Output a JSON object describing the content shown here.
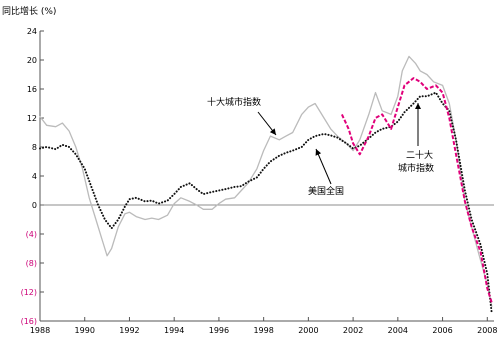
{
  "chart_data": {
    "type": "line",
    "ylabel": "同比增长 (%)",
    "ylim": [
      -16,
      24
    ],
    "xlim": [
      1988,
      2008.3
    ],
    "grid": false,
    "zero_line": true,
    "y_ticks": [
      {
        "value": 24,
        "label": "24"
      },
      {
        "value": 20,
        "label": "20"
      },
      {
        "value": 16,
        "label": "16"
      },
      {
        "value": 12,
        "label": "12"
      },
      {
        "value": 8,
        "label": "8"
      },
      {
        "value": 4,
        "label": "4"
      },
      {
        "value": 0,
        "label": "0"
      },
      {
        "value": -4,
        "label": "(4)"
      },
      {
        "value": -8,
        "label": "(8)"
      },
      {
        "value": -12,
        "label": "(12)"
      },
      {
        "value": -16,
        "label": "(16)"
      }
    ],
    "x_ticks": [
      {
        "value": 1988,
        "label": "1988"
      },
      {
        "value": 1990,
        "label": "1990"
      },
      {
        "value": 1992,
        "label": "1992"
      },
      {
        "value": 1994,
        "label": "1994"
      },
      {
        "value": 1996,
        "label": "1996"
      },
      {
        "value": 1998,
        "label": "1998"
      },
      {
        "value": 2000,
        "label": "2000"
      },
      {
        "value": 2002,
        "label": "2002"
      },
      {
        "value": 2004,
        "label": "2004"
      },
      {
        "value": 2006,
        "label": "2006"
      },
      {
        "value": 2008,
        "label": "2008"
      }
    ],
    "colors": {
      "positive_tick": "#000000",
      "negative_tick": "#cc0077",
      "ten_city": "#bbbbbb",
      "us_national": "#111111",
      "twenty_city": "#e0007a"
    },
    "series": [
      {
        "name": "十大城市指数",
        "style": "solid",
        "x": [
          1988.0,
          1988.3,
          1988.7,
          1989.0,
          1989.3,
          1989.6,
          1989.9,
          1990.2,
          1990.5,
          1990.8,
          1991.0,
          1991.2,
          1991.5,
          1991.8,
          1992.0,
          1992.3,
          1992.7,
          1993.0,
          1993.3,
          1993.7,
          1994.0,
          1994.3,
          1994.7,
          1995.0,
          1995.3,
          1995.7,
          1996.0,
          1996.3,
          1996.7,
          1997.0,
          1997.3,
          1997.7,
          1998.0,
          1998.3,
          1998.7,
          1999.0,
          1999.3,
          1999.7,
          2000.0,
          2000.3,
          2000.7,
          2001.0,
          2001.3,
          2001.7,
          2002.0,
          2002.3,
          2002.7,
          2003.0,
          2003.3,
          2003.7,
          2004.0,
          2004.2,
          2004.5,
          2004.8,
          2005.0,
          2005.3,
          2005.6,
          2006.0,
          2006.3,
          2006.6,
          2007.0,
          2007.3,
          2007.6,
          2008.0,
          2008.2
        ],
        "values": [
          12.2,
          11.0,
          10.8,
          11.3,
          10.2,
          8.0,
          5.0,
          1.0,
          -2.0,
          -5.0,
          -7.0,
          -6.0,
          -3.0,
          -1.2,
          -1.0,
          -1.6,
          -2.0,
          -1.8,
          -2.0,
          -1.4,
          0.2,
          1.0,
          0.5,
          0.0,
          -0.6,
          -0.6,
          0.2,
          0.8,
          1.0,
          2.0,
          3.0,
          5.0,
          7.5,
          9.5,
          9.0,
          9.5,
          10.0,
          12.5,
          13.5,
          14.0,
          12.0,
          10.5,
          9.5,
          8.5,
          7.5,
          9.0,
          12.5,
          15.5,
          13.0,
          12.5,
          15.0,
          18.5,
          20.5,
          19.5,
          18.5,
          18.0,
          17.0,
          16.5,
          14.0,
          9.0,
          0.5,
          -3.0,
          -6.5,
          -11.0,
          -14.0
        ]
      },
      {
        "name": "美国全国",
        "style": "dotted",
        "x": [
          1988.0,
          1988.3,
          1988.7,
          1989.0,
          1989.3,
          1989.6,
          1990.0,
          1990.3,
          1990.6,
          1990.9,
          1991.2,
          1991.5,
          1991.8,
          1992.0,
          1992.3,
          1992.7,
          1993.0,
          1993.3,
          1993.7,
          1994.0,
          1994.3,
          1994.7,
          1995.0,
          1995.3,
          1995.7,
          1996.0,
          1996.3,
          1996.7,
          1997.0,
          1997.3,
          1997.7,
          1998.0,
          1998.3,
          1998.7,
          1999.0,
          1999.3,
          1999.7,
          2000.0,
          2000.3,
          2000.7,
          2001.0,
          2001.3,
          2001.7,
          2002.0,
          2002.3,
          2002.7,
          2003.0,
          2003.3,
          2003.7,
          2004.0,
          2004.3,
          2004.7,
          2005.0,
          2005.3,
          2005.7,
          2006.0,
          2006.3,
          2006.6,
          2007.0,
          2007.3,
          2007.7,
          2008.0,
          2008.2
        ],
        "values": [
          7.8,
          8.0,
          7.7,
          8.3,
          8.0,
          7.0,
          5.0,
          2.5,
          0.0,
          -2.0,
          -3.2,
          -2.0,
          -0.2,
          0.8,
          1.0,
          0.5,
          0.6,
          0.2,
          0.6,
          1.5,
          2.5,
          3.0,
          2.2,
          1.5,
          1.8,
          2.0,
          2.2,
          2.5,
          2.6,
          3.2,
          3.8,
          5.0,
          6.0,
          6.8,
          7.2,
          7.5,
          8.0,
          9.0,
          9.5,
          9.8,
          9.6,
          9.3,
          8.5,
          7.8,
          8.2,
          9.2,
          10.0,
          10.5,
          10.8,
          11.5,
          12.8,
          14.0,
          15.0,
          15.0,
          15.5,
          14.0,
          13.0,
          9.0,
          2.0,
          -2.0,
          -5.5,
          -9.5,
          -15.0
        ]
      },
      {
        "name": "二十大城市指数",
        "style": "dashed",
        "x": [
          2001.5,
          2001.8,
          2002.0,
          2002.3,
          2002.7,
          2003.0,
          2003.3,
          2003.7,
          2004.0,
          2004.3,
          2004.7,
          2005.0,
          2005.3,
          2005.7,
          2006.0,
          2006.3,
          2006.6,
          2007.0,
          2007.3,
          2007.7,
          2008.0,
          2008.2
        ],
        "values": [
          12.5,
          10.5,
          8.5,
          7.0,
          9.5,
          12.0,
          12.5,
          10.5,
          13.5,
          16.5,
          17.5,
          17.0,
          16.0,
          16.5,
          15.5,
          12.0,
          7.0,
          0.5,
          -3.0,
          -6.5,
          -11.5,
          -13.5
        ]
      }
    ],
    "annotations": [
      {
        "text": "十大城市指数",
        "series": "十大城市指数"
      },
      {
        "text": "美国全国",
        "series": "美国全国"
      },
      {
        "text_lines": [
          "二十大",
          "城市指数"
        ],
        "series": "二十大城市指数"
      }
    ]
  }
}
